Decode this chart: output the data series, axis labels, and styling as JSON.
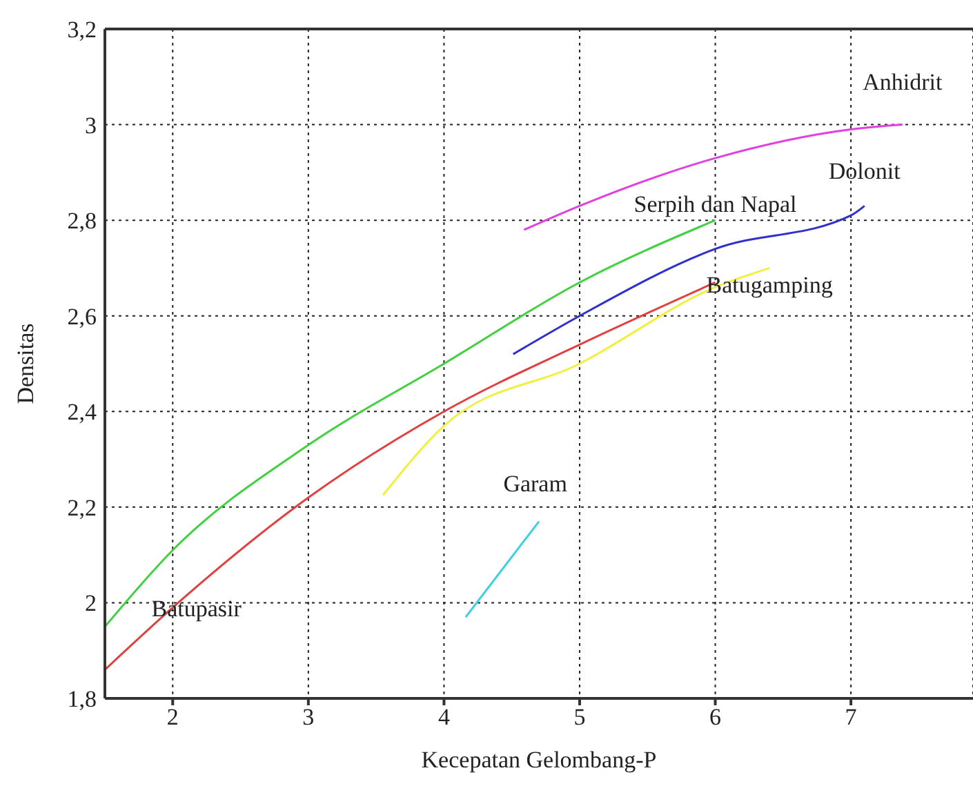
{
  "chart_data": {
    "type": "line",
    "xlabel": "Kecepatan Gelombang-P",
    "ylabel": "Densitas",
    "xlim": [
      1.5,
      7.9
    ],
    "xticks": [
      2,
      3,
      4,
      5,
      6,
      7
    ],
    "ylim": [
      1.8,
      3.2
    ],
    "yticks": [
      {
        "value": 1.8,
        "label": "1,8"
      },
      {
        "value": 2,
        "label": "2"
      },
      {
        "value": 2.2,
        "label": "2,2"
      },
      {
        "value": 2.4,
        "label": "2,4"
      },
      {
        "value": 2.6,
        "label": "2,6"
      },
      {
        "value": 2.8,
        "label": "2,8"
      },
      {
        "value": 3,
        "label": "3"
      },
      {
        "value": 3.2,
        "label": "3,2"
      }
    ],
    "grid": true,
    "line_style": "solid",
    "marker": "none",
    "series": [
      {
        "name": "Anhidrit",
        "color": "#e040e0",
        "x": [
          4.59,
          5,
          6,
          7,
          7.38
        ],
        "values": [
          2.78,
          2.83,
          2.93,
          2.99,
          3.0
        ]
      },
      {
        "name": "Serpih dan Napal",
        "color": "#40d040",
        "x": [
          1.5,
          2,
          3,
          4,
          5,
          6
        ],
        "values": [
          1.95,
          2.11,
          2.33,
          2.5,
          2.67,
          2.8
        ]
      },
      {
        "name": "Dolonit",
        "color": "#3030d0",
        "x": [
          4.51,
          5,
          6,
          7,
          7.1
        ],
        "values": [
          2.52,
          2.6,
          2.74,
          2.81,
          2.83
        ]
      },
      {
        "name": "Batugamping",
        "color": "#f0f040",
        "x": [
          3.55,
          4,
          5,
          6,
          6.4
        ],
        "values": [
          2.225,
          2.37,
          2.5,
          2.66,
          2.7
        ]
      },
      {
        "name": "Batupasir",
        "color": "#e04040",
        "x": [
          1.5,
          2,
          3,
          4,
          5,
          6
        ],
        "values": [
          1.86,
          1.99,
          2.22,
          2.4,
          2.54,
          2.67
        ]
      },
      {
        "name": "Garam",
        "color": "#40d0e0",
        "x": [
          4.16,
          4.7
        ],
        "values": [
          1.97,
          2.17
        ]
      }
    ]
  }
}
